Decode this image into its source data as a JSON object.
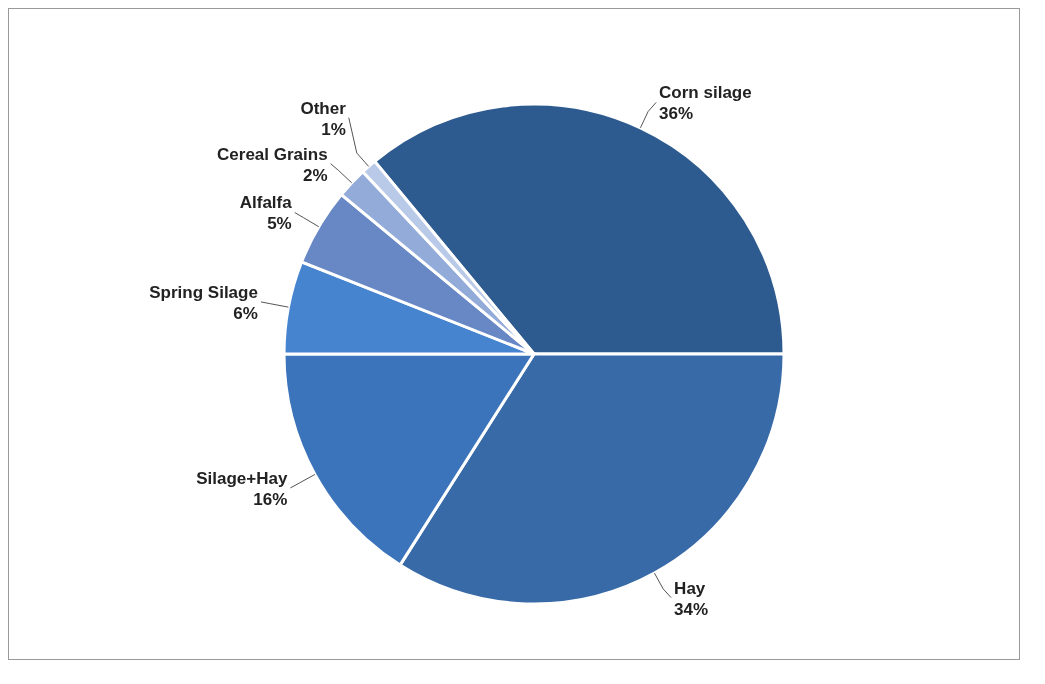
{
  "chart_data": {
    "type": "pie",
    "categories": [
      "Corn silage",
      "Hay",
      "Silage+Hay",
      "Spring Silage",
      "Alfalfa",
      "Cereal Grains",
      "Other"
    ],
    "values": [
      36,
      34,
      16,
      6,
      5,
      2,
      1
    ],
    "value_labels": [
      "36%",
      "34%",
      "16%",
      "6%",
      "5%",
      "2%",
      "1%"
    ],
    "colors": [
      "#2e5b8f",
      "#386aa8",
      "#3b74bb",
      "#4784d0",
      "#6788c4",
      "#93abd9",
      "#b9c9e8"
    ]
  }
}
